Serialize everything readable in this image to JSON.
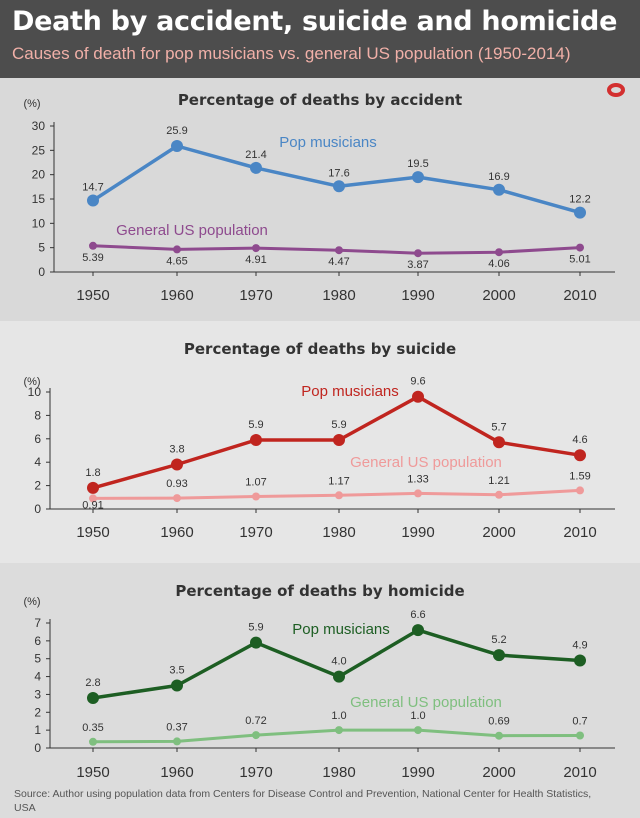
{
  "header": {
    "title": "Death by accident, suicide and homicide",
    "subtitle": "Causes of death for pop musicians vs. general US population (1950-2014)"
  },
  "source": "Source: Author using population data from Centers for Disease Control and Prevention, National Center for Health Statistics, USA",
  "colors": {
    "header_bg": "#4d4d4d",
    "subtitle": "#f1b0a8",
    "accident_pop": "#4a86c5",
    "accident_general": "#8e4a8e",
    "suicide_pop": "#c0251f",
    "suicide_general": "#ef9a9a",
    "homicide_pop": "#1d5e23",
    "homicide_general": "#7fbf7f",
    "logo": "#d32f2f"
  },
  "chart_data": [
    {
      "type": "line",
      "title": "Percentage of deaths by accident",
      "ylabel": "(%)",
      "x": [
        "1950",
        "1960",
        "1970",
        "1980",
        "1990",
        "2000",
        "2010"
      ],
      "ylim": [
        0,
        30
      ],
      "yticks": [
        0,
        5,
        10,
        15,
        20,
        25,
        30
      ],
      "grid": false,
      "series": [
        {
          "name": "Pop musicians",
          "values": [
            14.7,
            25.9,
            21.4,
            17.6,
            19.5,
            16.9,
            12.2
          ],
          "labels": [
            "14.7",
            "25.9",
            "21.4",
            "17.6",
            "19.5",
            "16.9",
            "12.2"
          ]
        },
        {
          "name": "General US population",
          "values": [
            5.39,
            4.65,
            4.91,
            4.47,
            3.87,
            4.06,
            5.01
          ],
          "labels": [
            "5.39",
            "4.65",
            "4.91",
            "4.47",
            "3.87",
            "4.06",
            "5.01"
          ]
        }
      ]
    },
    {
      "type": "line",
      "title": "Percentage of deaths by suicide",
      "ylabel": "(%)",
      "x": [
        "1950",
        "1960",
        "1970",
        "1980",
        "1990",
        "2000",
        "2010"
      ],
      "ylim": [
        0,
        10
      ],
      "yticks": [
        0,
        2,
        4,
        6,
        8,
        10
      ],
      "grid": false,
      "series": [
        {
          "name": "Pop musicians",
          "values": [
            1.8,
            3.8,
            5.9,
            5.9,
            9.6,
            5.7,
            4.6
          ],
          "labels": [
            "1.8",
            "3.8",
            "5.9",
            "5.9",
            "9.6",
            "5.7",
            "4.6"
          ]
        },
        {
          "name": "General US population",
          "values": [
            0.91,
            0.93,
            1.07,
            1.17,
            1.33,
            1.21,
            1.59
          ],
          "labels": [
            "0.91",
            "0.93",
            "1.07",
            "1.17",
            "1.33",
            "1.21",
            "1.59"
          ]
        }
      ]
    },
    {
      "type": "line",
      "title": "Percentage of deaths by homicide",
      "ylabel": "(%)",
      "x": [
        "1950",
        "1960",
        "1970",
        "1980",
        "1990",
        "2000",
        "2010"
      ],
      "ylim": [
        0,
        7
      ],
      "yticks": [
        0,
        1,
        2,
        3,
        4,
        5,
        6,
        7
      ],
      "grid": false,
      "series": [
        {
          "name": "Pop musicians",
          "values": [
            2.8,
            3.5,
            5.9,
            4.0,
            6.6,
            5.2,
            4.9
          ],
          "labels": [
            "2.8",
            "3.5",
            "5.9",
            "4.0",
            "6.6",
            "5.2",
            "4.9"
          ]
        },
        {
          "name": "General US population",
          "values": [
            0.35,
            0.37,
            0.72,
            1.0,
            1.0,
            0.69,
            0.7
          ],
          "labels": [
            "0.35",
            "0.37",
            "0.72",
            "1.0",
            "1.0",
            "0.69",
            "0.7"
          ]
        }
      ]
    }
  ]
}
